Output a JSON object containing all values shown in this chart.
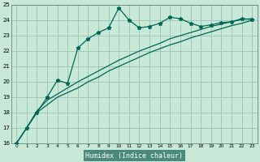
{
  "xlabel": "Humidex (Indice chaleur)",
  "background_color": "#c8e8d8",
  "grid_color": "#a0c8b8",
  "line_color": "#006655",
  "xlabel_bg": "#4a8a7a",
  "xlabel_fg": "#ffffff",
  "xlim": [
    -0.5,
    23.5
  ],
  "ylim": [
    16,
    25
  ],
  "xticks": [
    0,
    1,
    2,
    3,
    4,
    5,
    6,
    7,
    8,
    9,
    10,
    11,
    12,
    13,
    14,
    15,
    16,
    17,
    18,
    19,
    20,
    21,
    22,
    23
  ],
  "yticks": [
    16,
    17,
    18,
    19,
    20,
    21,
    22,
    23,
    24,
    25
  ],
  "series_main_x": [
    0,
    1,
    2,
    3,
    4,
    5,
    6,
    7,
    8,
    9,
    10,
    11,
    12,
    13,
    14,
    15,
    16,
    17,
    18,
    19,
    20,
    21,
    22,
    23
  ],
  "series_main_y": [
    16.0,
    17.0,
    18.0,
    19.0,
    20.1,
    19.9,
    22.2,
    22.8,
    23.2,
    23.5,
    24.8,
    24.0,
    23.5,
    23.6,
    23.8,
    24.2,
    24.1,
    23.8,
    23.6,
    23.7,
    23.85,
    23.9,
    24.1,
    24.05
  ],
  "series_line1_x": [
    0,
    1,
    2,
    3,
    4,
    5,
    6,
    7,
    8,
    9,
    10,
    11,
    12,
    13,
    14,
    15,
    16,
    17,
    18,
    19,
    20,
    21,
    22,
    23
  ],
  "series_line1_y": [
    16.0,
    17.0,
    18.0,
    18.5,
    19.0,
    19.3,
    19.6,
    20.0,
    20.3,
    20.7,
    21.0,
    21.3,
    21.6,
    21.9,
    22.15,
    22.4,
    22.6,
    22.85,
    23.05,
    23.25,
    23.45,
    23.65,
    23.8,
    24.0
  ],
  "series_line2_x": [
    0,
    1,
    2,
    3,
    4,
    5,
    6,
    7,
    8,
    9,
    10,
    11,
    12,
    13,
    14,
    15,
    16,
    17,
    18,
    19,
    20,
    21,
    22,
    23
  ],
  "series_line2_y": [
    16.0,
    17.0,
    18.1,
    18.8,
    19.2,
    19.6,
    20.0,
    20.35,
    20.7,
    21.05,
    21.4,
    21.7,
    22.0,
    22.25,
    22.5,
    22.8,
    23.0,
    23.2,
    23.4,
    23.6,
    23.75,
    23.9,
    24.05,
    24.1
  ]
}
